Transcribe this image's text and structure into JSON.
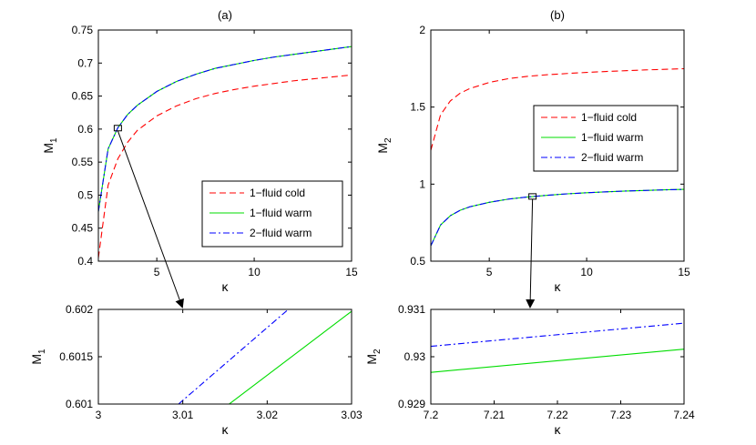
{
  "chart_data": [
    {
      "id": "a",
      "type": "line",
      "title": "(a)",
      "xlabel": "κ",
      "ylabel": "M",
      "ylabel_sub": "1",
      "xlim": [
        2,
        15
      ],
      "ylim": [
        0.4,
        0.75
      ],
      "xticks": [
        5,
        10,
        15
      ],
      "xtick_labels": [
        "5",
        "10",
        "15"
      ],
      "yticks": [
        0.4,
        0.45,
        0.5,
        0.55,
        0.6,
        0.65,
        0.7,
        0.75
      ],
      "ytick_labels": [
        "0.4",
        "0.45",
        "0.5",
        "0.55",
        "0.6",
        "0.65",
        "0.7",
        "0.75"
      ],
      "legend_position": "lower-right",
      "series": [
        {
          "name": "1−fluid cold",
          "color": "#ff0000",
          "dash": "dashed",
          "x": [
            2,
            2.5,
            3,
            3.5,
            4,
            5,
            6,
            7,
            8,
            9,
            10,
            11,
            12,
            13,
            14,
            15
          ],
          "y": [
            0.405,
            0.515,
            0.555,
            0.58,
            0.598,
            0.62,
            0.635,
            0.646,
            0.654,
            0.66,
            0.665,
            0.669,
            0.673,
            0.676,
            0.679,
            0.682
          ]
        },
        {
          "name": "1−fluid warm",
          "color": "#00dd00",
          "dash": "solid",
          "x": [
            2,
            2.5,
            3,
            3.5,
            4,
            5,
            6,
            7,
            8,
            9,
            10,
            11,
            12,
            13,
            14,
            15
          ],
          "y": [
            0.475,
            0.57,
            0.602,
            0.622,
            0.636,
            0.657,
            0.672,
            0.683,
            0.692,
            0.698,
            0.704,
            0.709,
            0.713,
            0.717,
            0.721,
            0.725
          ]
        },
        {
          "name": "2−fluid warm",
          "color": "#0000ff",
          "dash": "dashdot",
          "x": [
            2,
            2.5,
            3,
            3.5,
            4,
            5,
            6,
            7,
            8,
            9,
            10,
            11,
            12,
            13,
            14,
            15
          ],
          "y": [
            0.475,
            0.57,
            0.602,
            0.622,
            0.636,
            0.657,
            0.672,
            0.683,
            0.692,
            0.698,
            0.704,
            0.709,
            0.713,
            0.717,
            0.721,
            0.725
          ]
        }
      ],
      "zoom_box": {
        "x": 3,
        "y": 0.6015
      }
    },
    {
      "id": "b",
      "type": "line",
      "title": "(b)",
      "xlabel": "κ",
      "ylabel": "M",
      "ylabel_sub": "2",
      "xlim": [
        2,
        15
      ],
      "ylim": [
        0.5,
        2
      ],
      "xticks": [
        5,
        10,
        15
      ],
      "xtick_labels": [
        "5",
        "10",
        "15"
      ],
      "yticks": [
        0.5,
        1,
        1.5,
        2
      ],
      "ytick_labels": [
        "0.5",
        "1",
        "1.5",
        "2"
      ],
      "legend_position": "right",
      "series": [
        {
          "name": "1−fluid cold",
          "color": "#ff0000",
          "dash": "dashed",
          "x": [
            2,
            2.5,
            3,
            3.5,
            4,
            5,
            6,
            7,
            8,
            9,
            10,
            11,
            12,
            13,
            14,
            15
          ],
          "y": [
            1.22,
            1.45,
            1.54,
            1.59,
            1.62,
            1.66,
            1.685,
            1.7,
            1.71,
            1.718,
            1.725,
            1.731,
            1.736,
            1.741,
            1.745,
            1.749
          ]
        },
        {
          "name": "1−fluid warm",
          "color": "#00dd00",
          "dash": "solid",
          "x": [
            2,
            2.5,
            3,
            3.5,
            4,
            5,
            6,
            7,
            8,
            9,
            10,
            11,
            12,
            13,
            14,
            15
          ],
          "y": [
            0.6,
            0.735,
            0.795,
            0.83,
            0.853,
            0.882,
            0.903,
            0.917,
            0.928,
            0.937,
            0.944,
            0.95,
            0.955,
            0.959,
            0.963,
            0.966
          ]
        },
        {
          "name": "2−fluid warm",
          "color": "#0000ff",
          "dash": "dashdot",
          "x": [
            2,
            2.5,
            3,
            3.5,
            4,
            5,
            6,
            7,
            8,
            9,
            10,
            11,
            12,
            13,
            14,
            15
          ],
          "y": [
            0.6,
            0.735,
            0.795,
            0.83,
            0.853,
            0.882,
            0.903,
            0.917,
            0.928,
            0.937,
            0.944,
            0.95,
            0.955,
            0.959,
            0.963,
            0.966
          ]
        }
      ],
      "zoom_box": {
        "x": 7.22,
        "y": 0.92
      }
    },
    {
      "id": "c",
      "type": "line",
      "title": "",
      "xlabel": "κ",
      "ylabel": "M",
      "ylabel_sub": "1",
      "xlim": [
        3,
        3.03
      ],
      "ylim": [
        0.601,
        0.602
      ],
      "xticks": [
        3,
        3.01,
        3.02,
        3.03
      ],
      "xtick_labels": [
        "3",
        "3.01",
        "3.02",
        "3.03"
      ],
      "yticks": [
        0.601,
        0.6015,
        0.602
      ],
      "yticks_label_values": [
        0.601,
        0.6015,
        0.602
      ],
      "ytick_labels": [
        "0.601",
        "0.6015",
        "0.602"
      ],
      "series": [
        {
          "name": "1−fluid warm",
          "color": "#00dd00",
          "dash": "solid",
          "x": [
            3.0155,
            3.03
          ],
          "y": [
            0.601,
            0.60198
          ]
        },
        {
          "name": "2−fluid warm",
          "color": "#0000ff",
          "dash": "dashdot",
          "x": [
            3.0095,
            3.0225
          ],
          "y": [
            0.601,
            0.602
          ]
        }
      ]
    },
    {
      "id": "d",
      "type": "line",
      "title": "",
      "xlabel": "κ",
      "ylabel": "M",
      "ylabel_sub": "2",
      "xlim": [
        7.2,
        7.24
      ],
      "ylim": [
        0.929,
        0.931
      ],
      "xticks": [
        7.2,
        7.21,
        7.22,
        7.23,
        7.24
      ],
      "xtick_labels": [
        "7.2",
        "7.21",
        "7.22",
        "7.23",
        "7.24"
      ],
      "yticks": [
        0.929,
        0.93,
        0.931
      ],
      "ytick_labels": [
        "0.929",
        "0.93",
        "0.931"
      ],
      "series": [
        {
          "name": "1−fluid warm",
          "color": "#00dd00",
          "dash": "solid",
          "x": [
            7.2,
            7.24
          ],
          "y": [
            0.92967,
            0.93016
          ]
        },
        {
          "name": "2−fluid warm",
          "color": "#0000ff",
          "dash": "dashdot",
          "x": [
            7.2,
            7.24
          ],
          "y": [
            0.93022,
            0.93071
          ]
        }
      ]
    }
  ]
}
